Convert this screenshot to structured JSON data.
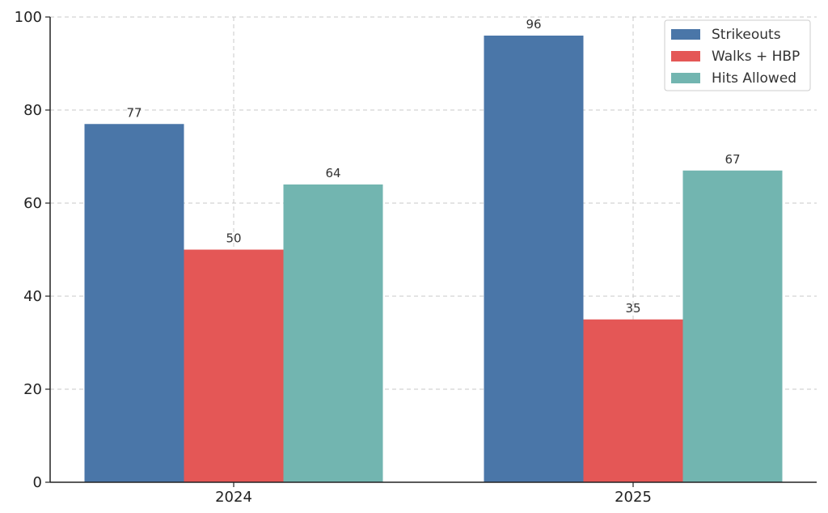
{
  "chart_data": {
    "type": "bar",
    "categories": [
      "2024",
      "2025"
    ],
    "series": [
      {
        "name": "Strikeouts",
        "values": [
          77,
          96
        ],
        "color": "#4a76a8"
      },
      {
        "name": "Walks + HBP",
        "values": [
          50,
          35
        ],
        "color": "#e45756"
      },
      {
        "name": "Hits Allowed",
        "values": [
          64,
          67
        ],
        "color": "#72b5b0"
      }
    ],
    "title": "",
    "xlabel": "",
    "ylabel": "",
    "ylim": [
      0,
      100
    ],
    "yticks": [
      "0",
      "20",
      "40",
      "60",
      "80",
      "100"
    ],
    "grid": true,
    "legend_position": "top-right"
  }
}
